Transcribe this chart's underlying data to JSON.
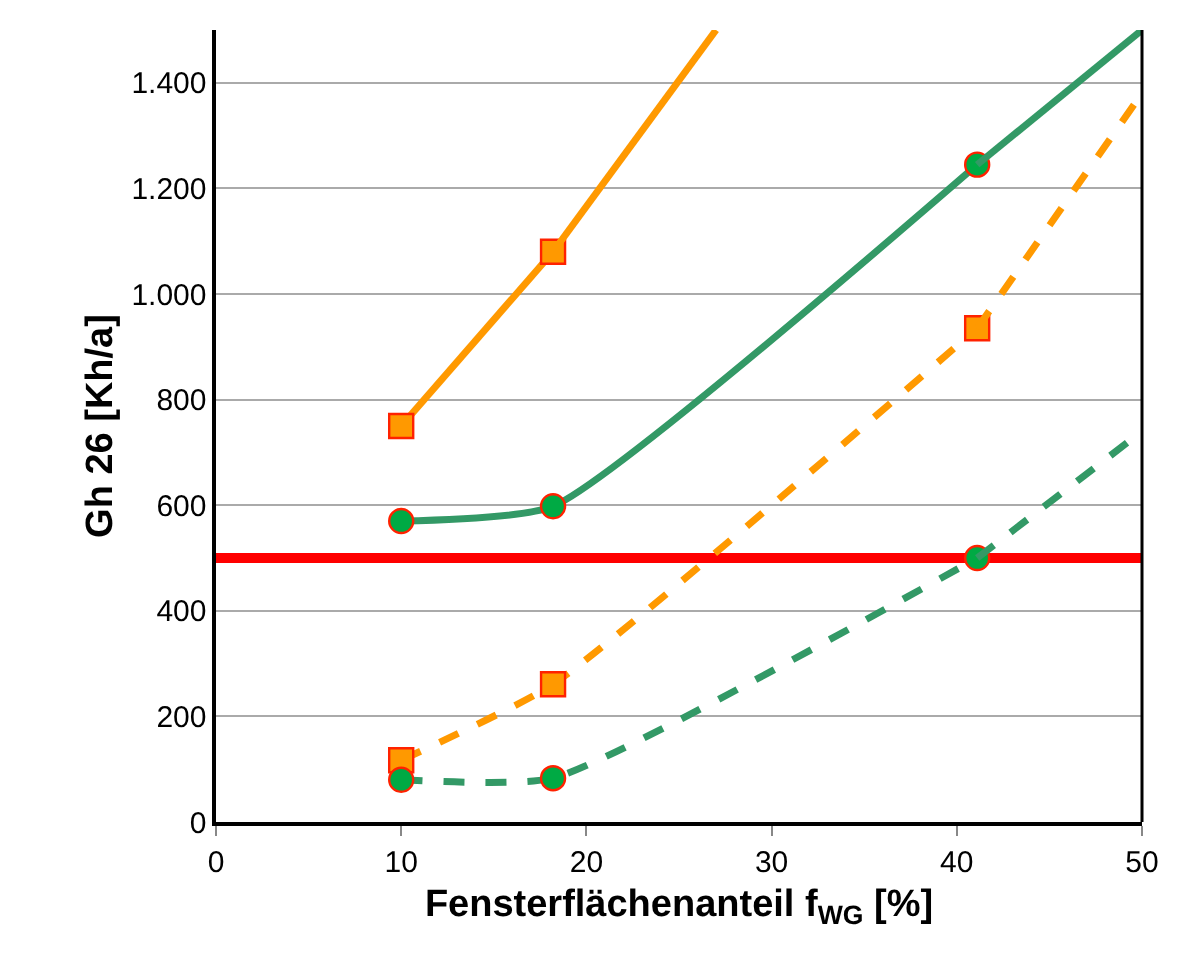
{
  "chart_data": {
    "type": "line",
    "xlabel": "Fensterflächenanteil f$_{WG}$ [%]",
    "ylabel": "Gh 26 [Kh/a]",
    "xlim": [
      0,
      50
    ],
    "xticks": [
      0,
      10,
      20,
      30,
      40,
      50
    ],
    "ylim": [
      0,
      1500
    ],
    "yticks": [
      0,
      200,
      400,
      600,
      800,
      {
        "value": 1000,
        "label": "1.000"
      },
      {
        "value": 1200,
        "label": "1.200"
      },
      {
        "value": 1400,
        "label": "1.400"
      }
    ],
    "grid": "y",
    "series": [
      {
        "x": [
          10,
          18.2
        ],
        "values": [
          750,
          1080
        ],
        "color": "#ff9900",
        "marker": "square",
        "line_style": "solid"
      },
      {
        "x": [
          18.2,
          27
        ],
        "values": [
          1080,
          1500
        ],
        "color": "#ff9900",
        "marker": "none",
        "line_style": "solid"
      },
      {
        "x": [
          10,
          18.2,
          41.1
        ],
        "values": [
          570,
          598,
          1245
        ],
        "color": "#339966",
        "marker": "circle",
        "line_style": "solid"
      },
      {
        "x": [
          41.1,
          50
        ],
        "values": [
          1245,
          1500
        ],
        "color": "#339966",
        "marker": "none",
        "line_style": "solid"
      },
      {
        "x": [
          10,
          18.2,
          41.1
        ],
        "values": [
          117,
          261,
          935
        ],
        "color": "#ff9900",
        "marker": "square",
        "line_style": "dashed"
      },
      {
        "x": [
          41.1,
          50
        ],
        "values": [
          935,
          1380
        ],
        "color": "#ff9900",
        "marker": "none",
        "line_style": "dashed"
      },
      {
        "x": [
          10,
          18.2,
          41.1
        ],
        "values": [
          80,
          83,
          500
        ],
        "color": "#339966",
        "marker": "circle",
        "line_style": "dashed"
      },
      {
        "x": [
          41.1,
          50
        ],
        "values": [
          500,
          740
        ],
        "color": "#339966",
        "marker": "none",
        "line_style": "dashed"
      }
    ],
    "ref_lines": [
      {
        "axis": "y",
        "value": 500,
        "color": "#ff0000",
        "line_style": "solid"
      }
    ]
  }
}
